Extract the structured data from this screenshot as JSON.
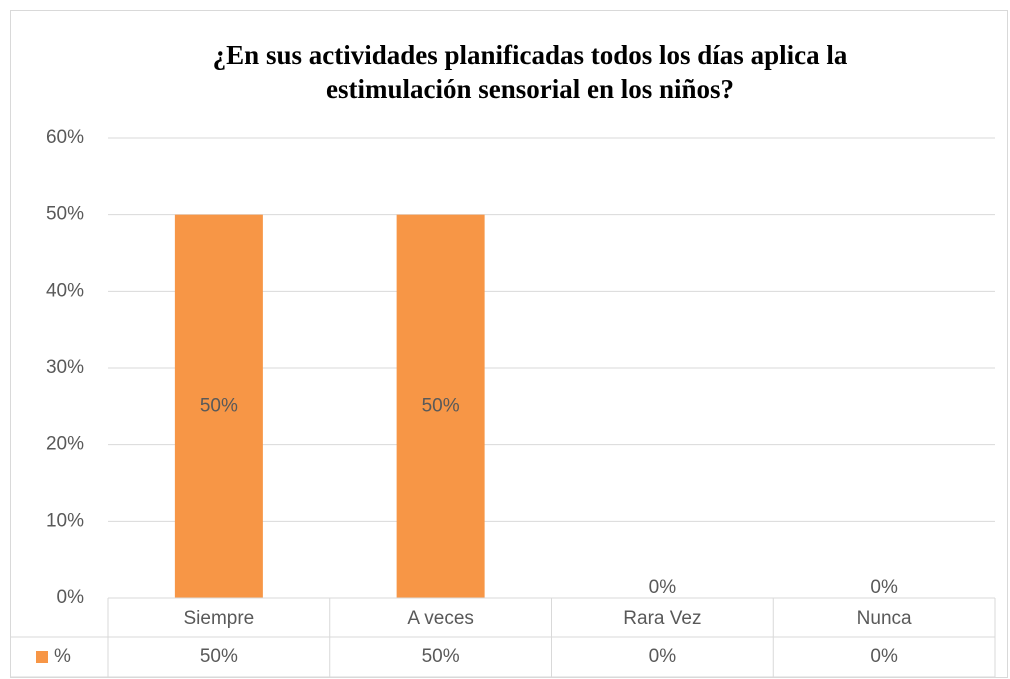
{
  "chart_data": {
    "type": "bar",
    "title": "¿En sus actividades planificadas todos los días aplica la estimulación sensorial en los niños?",
    "categories": [
      "Siempre",
      "A veces",
      "Rara Vez",
      "Nunca"
    ],
    "series": [
      {
        "name": "%",
        "color": "#f79646",
        "values": [
          50,
          50,
          0,
          0
        ],
        "value_labels": [
          "50%",
          "50%",
          "0%",
          "0%"
        ]
      }
    ],
    "ylim": [
      0,
      60
    ],
    "yticks": [
      {
        "value": 0,
        "label": "0%"
      },
      {
        "value": 10,
        "label": "10%"
      },
      {
        "value": 20,
        "label": "20%"
      },
      {
        "value": 30,
        "label": "30%"
      },
      {
        "value": 40,
        "label": "40%"
      },
      {
        "value": 50,
        "label": "50%"
      },
      {
        "value": 60,
        "label": "60%"
      }
    ],
    "grid": true
  }
}
